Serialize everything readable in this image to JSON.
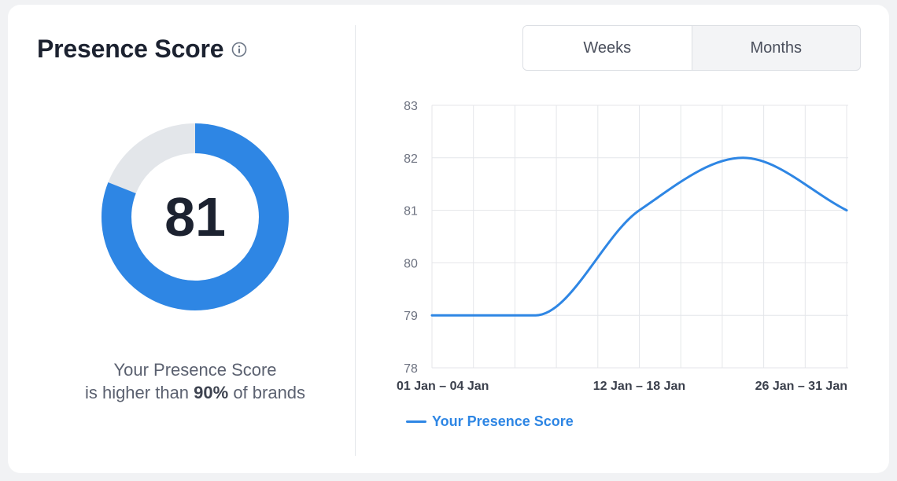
{
  "header": {
    "title": "Presence Score"
  },
  "icons": {
    "info": "info-icon"
  },
  "score": {
    "value": "81",
    "progress_percent": 81,
    "caption_line1": "Your Presence Score",
    "caption_prefix": "is higher than ",
    "caption_percent": "90%",
    "caption_suffix": " of brands"
  },
  "toggle": {
    "weeks_label": "Weeks",
    "months_label": "Months",
    "selected": "Weeks"
  },
  "colors": {
    "accent": "#2e86e4",
    "track": "#e3e6ea",
    "grid": "#e4e6ea",
    "text_dark": "#1c2230"
  },
  "chart_data": {
    "type": "line",
    "x": [
      "01 Jan – 04 Jan",
      "12 Jan – 18 Jan",
      "26 Jan – 31 Jan"
    ],
    "x_positions": [
      0,
      0.5,
      1
    ],
    "yticks": [
      78,
      79,
      80,
      81,
      82,
      83
    ],
    "ylim": [
      78,
      83
    ],
    "grid": true,
    "legend": "bottom-left",
    "series": [
      {
        "name": "Your Presence Score",
        "points": [
          [
            0,
            79
          ],
          [
            0.25,
            79
          ],
          [
            0.5,
            81
          ],
          [
            0.75,
            82
          ],
          [
            1,
            81
          ]
        ]
      }
    ]
  }
}
